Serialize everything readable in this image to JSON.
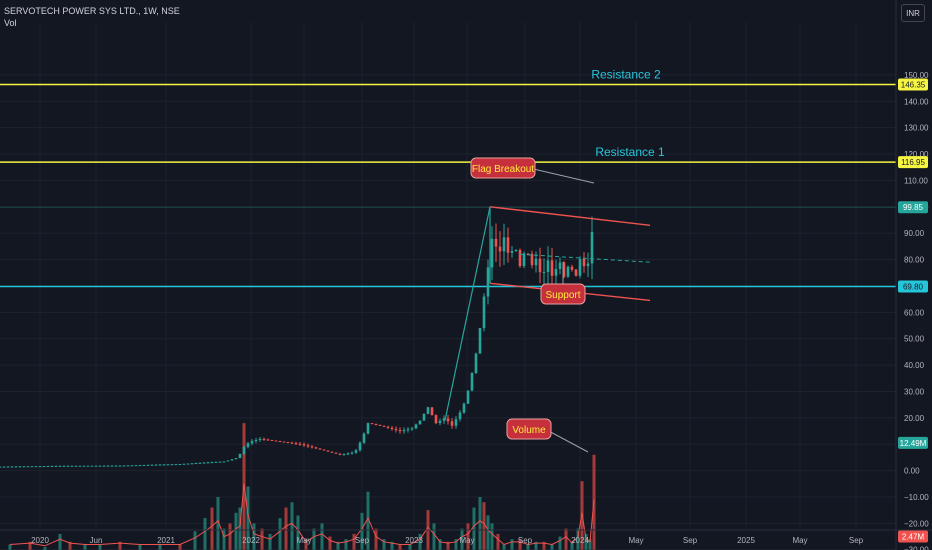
{
  "header": {
    "symbol_line": "SERVOTECH POWER SYS LTD., 1W, NSE",
    "volume_label": "Vol",
    "currency_button": "INR"
  },
  "colors": {
    "background": "#131722",
    "up": "#26a69a",
    "down": "#ef5350",
    "resistance": "#f5f542",
    "support": "#26c6da",
    "channel": "#ef5350",
    "annotation_fill": "#c62f3c",
    "annotation_text": "#ffeb3b",
    "label_text": "#26c6da",
    "volume_ma": "#ef5350"
  },
  "chart_data": {
    "type": "candlestick",
    "interval": "1W",
    "x_ticks": [
      "2020",
      "Jun",
      "2021",
      "2022",
      "May",
      "Sep",
      "2023",
      "May",
      "Sep",
      "2024",
      "May",
      "Sep",
      "2025",
      "May",
      "Sep"
    ],
    "y_ticks": [
      "150.00",
      "140.00",
      "130.00",
      "120.00",
      "110.00",
      "100.00",
      "90.00",
      "80.00",
      "70.00",
      "60.00",
      "50.00",
      "40.00",
      "30.00",
      "20.00",
      "10.00",
      "0.00",
      "−10.00",
      "−20.00",
      "−30.00"
    ],
    "ylim": [
      -32,
      158
    ],
    "horizontal_levels": [
      {
        "label": "Resistance 2",
        "value": 146.35,
        "price_tag": "146.35",
        "color": "#f5f542"
      },
      {
        "label": "Resistance 1",
        "value": 116.95,
        "price_tag": "116.95",
        "color": "#f5f542"
      },
      {
        "label": "",
        "value": 69.8,
        "price_tag": "69.80",
        "color": "#26c6da"
      }
    ],
    "last_price": {
      "value": 99.85,
      "price_tag": "99.85"
    },
    "volume_tags": [
      {
        "price_tag": "12.49M",
        "value": 10.5
      },
      {
        "price_tag": "2.47M",
        "value": -25
      }
    ],
    "annotations": [
      "Flag Breakout",
      "Support",
      "Volume"
    ],
    "price_path": [
      [
        0,
        1.5
      ],
      [
        60,
        1.8
      ],
      [
        120,
        1.9
      ],
      [
        180,
        2.5
      ],
      [
        225,
        3.5
      ],
      [
        238,
        5
      ],
      [
        244,
        9
      ],
      [
        250,
        11
      ],
      [
        260,
        12
      ],
      [
        280,
        11
      ],
      [
        300,
        10
      ],
      [
        320,
        8
      ],
      [
        340,
        6
      ],
      [
        355,
        7
      ],
      [
        362,
        12
      ],
      [
        368,
        18
      ],
      [
        380,
        17
      ],
      [
        400,
        15
      ],
      [
        412,
        16
      ],
      [
        420,
        19
      ],
      [
        428,
        24
      ],
      [
        436,
        18
      ],
      [
        445,
        20
      ],
      [
        452,
        17
      ],
      [
        460,
        22
      ],
      [
        466,
        27
      ],
      [
        472,
        37
      ],
      [
        478,
        48
      ],
      [
        482,
        60
      ],
      [
        486,
        72
      ],
      [
        490,
        82
      ],
      [
        494,
        88
      ],
      [
        498,
        84
      ],
      [
        506,
        86
      ],
      [
        514,
        82
      ],
      [
        522,
        80
      ],
      [
        530,
        82
      ],
      [
        538,
        76
      ],
      [
        546,
        77
      ],
      [
        554,
        76
      ],
      [
        562,
        77
      ],
      [
        570,
        75
      ],
      [
        578,
        77
      ],
      [
        586,
        79
      ],
      [
        590,
        81
      ],
      [
        594,
        99.85
      ]
    ],
    "volume_bars": [
      [
        10,
        -28
      ],
      [
        30,
        -27
      ],
      [
        45,
        -29
      ],
      [
        60,
        -24
      ],
      [
        70,
        -27
      ],
      [
        85,
        -28
      ],
      [
        100,
        -28
      ],
      [
        120,
        -27
      ],
      [
        140,
        -28
      ],
      [
        160,
        -28
      ],
      [
        180,
        -28
      ],
      [
        195,
        -23
      ],
      [
        205,
        -18
      ],
      [
        212,
        -14
      ],
      [
        218,
        -10
      ],
      [
        224,
        -22
      ],
      [
        230,
        -20
      ],
      [
        236,
        -16
      ],
      [
        240,
        -14
      ],
      [
        244,
        18
      ],
      [
        248,
        -6
      ],
      [
        254,
        -20
      ],
      [
        262,
        -22
      ],
      [
        270,
        -24
      ],
      [
        280,
        -18
      ],
      [
        286,
        -14
      ],
      [
        292,
        -12
      ],
      [
        298,
        -17
      ],
      [
        306,
        -26
      ],
      [
        314,
        -22
      ],
      [
        322,
        -20
      ],
      [
        330,
        -25
      ],
      [
        338,
        -27
      ],
      [
        346,
        -26
      ],
      [
        354,
        -24
      ],
      [
        362,
        -16
      ],
      [
        368,
        -8
      ],
      [
        376,
        -22
      ],
      [
        384,
        -26
      ],
      [
        392,
        -27
      ],
      [
        400,
        -28
      ],
      [
        410,
        -28
      ],
      [
        420,
        -24
      ],
      [
        428,
        -15
      ],
      [
        434,
        -20
      ],
      [
        440,
        -26
      ],
      [
        448,
        -27
      ],
      [
        456,
        -26
      ],
      [
        462,
        -22
      ],
      [
        468,
        -20
      ],
      [
        474,
        -14
      ],
      [
        480,
        -10
      ],
      [
        484,
        -12
      ],
      [
        488,
        -17
      ],
      [
        492,
        -20
      ],
      [
        498,
        -24
      ],
      [
        504,
        -28
      ],
      [
        512,
        -26
      ],
      [
        520,
        -26
      ],
      [
        528,
        -28
      ],
      [
        536,
        -27
      ],
      [
        544,
        -27
      ],
      [
        552,
        -28
      ],
      [
        560,
        -25
      ],
      [
        566,
        -22
      ],
      [
        572,
        -27
      ],
      [
        578,
        -22
      ],
      [
        582,
        -4
      ],
      [
        586,
        -24
      ],
      [
        590,
        -26
      ],
      [
        594,
        6
      ]
    ]
  }
}
